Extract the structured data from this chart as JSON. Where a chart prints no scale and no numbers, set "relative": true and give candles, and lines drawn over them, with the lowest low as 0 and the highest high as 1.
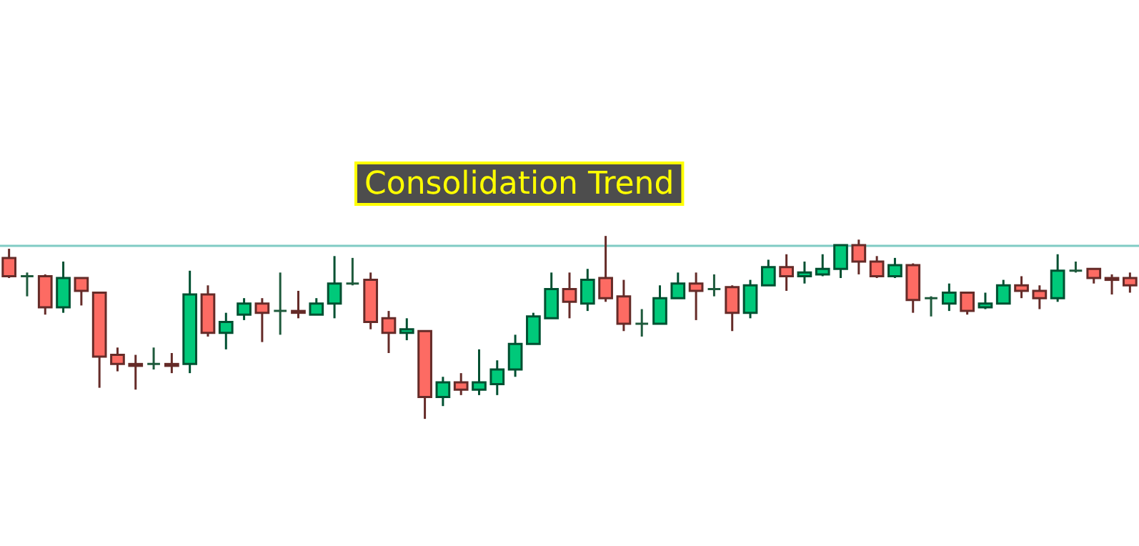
{
  "chart_data": {
    "type": "candlestick",
    "relative": true,
    "tick_labels": false,
    "grid": false,
    "annotations": [
      "Consolidation Trend"
    ],
    "ref_lines": [
      {
        "axis": "y",
        "value": 0.95,
        "color": "#80cbc4"
      }
    ],
    "categories": [
      null,
      null,
      null,
      null,
      null,
      null,
      null,
      null,
      null,
      null,
      null,
      null,
      null,
      null,
      null,
      null,
      null,
      null,
      null,
      null,
      null,
      null,
      null,
      null,
      null,
      null,
      null,
      null,
      null,
      null,
      null,
      null,
      null,
      null,
      null,
      null,
      null,
      null,
      null,
      null,
      null,
      null,
      null,
      null,
      null,
      null,
      null,
      null,
      null,
      null,
      null,
      null,
      null,
      null,
      null,
      null,
      null,
      null,
      null,
      null,
      null,
      null,
      null
    ],
    "ohlc": [
      [
        0.88,
        0.93,
        0.77,
        0.78
      ],
      [
        0.78,
        0.8,
        0.67,
        0.78
      ],
      [
        0.78,
        0.79,
        0.57,
        0.61
      ],
      [
        0.61,
        0.86,
        0.58,
        0.77
      ],
      [
        0.77,
        0.77,
        0.62,
        0.7
      ],
      [
        0.69,
        0.69,
        0.17,
        0.34
      ],
      [
        0.35,
        0.39,
        0.26,
        0.3
      ],
      [
        0.3,
        0.35,
        0.16,
        0.29
      ],
      [
        0.3,
        0.39,
        0.27,
        0.3
      ],
      [
        0.3,
        0.36,
        0.25,
        0.29
      ],
      [
        0.3,
        0.81,
        0.25,
        0.68
      ],
      [
        0.68,
        0.73,
        0.45,
        0.47
      ],
      [
        0.47,
        0.58,
        0.38,
        0.53
      ],
      [
        0.57,
        0.66,
        0.54,
        0.63
      ],
      [
        0.63,
        0.66,
        0.42,
        0.58
      ],
      [
        0.59,
        0.8,
        0.46,
        0.59
      ],
      [
        0.59,
        0.7,
        0.55,
        0.58
      ],
      [
        0.57,
        0.66,
        0.57,
        0.63
      ],
      [
        0.63,
        0.89,
        0.55,
        0.74
      ],
      [
        0.74,
        0.88,
        0.73,
        0.74
      ],
      [
        0.76,
        0.8,
        0.49,
        0.53
      ],
      [
        0.55,
        0.59,
        0.36,
        0.47
      ],
      [
        0.47,
        0.55,
        0.43,
        0.49
      ],
      [
        0.48,
        0.48,
        0,
        0.12
      ],
      [
        0.12,
        0.23,
        0.07,
        0.2
      ],
      [
        0.2,
        0.25,
        0.13,
        0.16
      ],
      [
        0.16,
        0.38,
        0.13,
        0.2
      ],
      [
        0.19,
        0.32,
        0.13,
        0.27
      ],
      [
        0.27,
        0.46,
        0.23,
        0.41
      ],
      [
        0.41,
        0.58,
        0.41,
        0.56
      ],
      [
        0.55,
        0.8,
        0.55,
        0.71
      ],
      [
        0.71,
        0.8,
        0.55,
        0.64
      ],
      [
        0.63,
        0.82,
        0.59,
        0.76
      ],
      [
        0.77,
        1,
        0.64,
        0.66
      ],
      [
        0.67,
        0.76,
        0.48,
        0.52
      ],
      [
        0.52,
        0.6,
        0.45,
        0.52
      ],
      [
        0.52,
        0.73,
        0.52,
        0.66
      ],
      [
        0.66,
        0.8,
        0.66,
        0.74
      ],
      [
        0.74,
        0.8,
        0.54,
        0.7
      ],
      [
        0.71,
        0.79,
        0.67,
        0.71
      ],
      [
        0.72,
        0.73,
        0.48,
        0.58
      ],
      [
        0.58,
        0.76,
        0.55,
        0.73
      ],
      [
        0.73,
        0.87,
        0.73,
        0.83
      ],
      [
        0.83,
        0.9,
        0.7,
        0.78
      ],
      [
        0.78,
        0.86,
        0.74,
        0.8
      ],
      [
        0.79,
        0.9,
        0.78,
        0.82
      ],
      [
        0.82,
        0.95,
        0.77,
        0.95
      ],
      [
        0.95,
        0.98,
        0.79,
        0.86
      ],
      [
        0.86,
        0.89,
        0.77,
        0.78
      ],
      [
        0.78,
        0.88,
        0.77,
        0.84
      ],
      [
        0.84,
        0.85,
        0.58,
        0.65
      ],
      [
        0.66,
        0.67,
        0.56,
        0.66
      ],
      [
        0.63,
        0.74,
        0.59,
        0.69
      ],
      [
        0.69,
        0.69,
        0.57,
        0.59
      ],
      [
        0.61,
        0.69,
        0.6,
        0.63
      ],
      [
        0.63,
        0.76,
        0.63,
        0.73
      ],
      [
        0.73,
        0.78,
        0.66,
        0.7
      ],
      [
        0.7,
        0.73,
        0.6,
        0.66
      ],
      [
        0.66,
        0.9,
        0.64,
        0.81
      ],
      [
        0.81,
        0.86,
        0.8,
        0.81
      ],
      [
        0.82,
        0.82,
        0.74,
        0.77
      ],
      [
        0.77,
        0.79,
        0.68,
        0.76
      ],
      [
        0.77,
        0.8,
        0.69,
        0.73
      ]
    ],
    "colors": [
      "#fd6b63",
      "#1e5a3c",
      "#fd6b63",
      "#00c97a",
      "#fd6b63",
      "#fd6b63",
      "#fd6b63",
      "#fd6b63",
      "#1e5a3c",
      "#fd6b63",
      "#00c97a",
      "#fd6b63",
      "#00c97a",
      "#00c97a",
      "#fd6b63",
      "#1e5a3c",
      "#fd6b63",
      "#00c97a",
      "#00c97a",
      "#1e5a3c",
      "#fd6b63",
      "#fd6b63",
      "#00c97a",
      "#fd6b63",
      "#00c97a",
      "#fd6b63",
      "#00c97a",
      "#00c97a",
      "#00c97a",
      "#00c97a",
      "#00c97a",
      "#fd6b63",
      "#00c97a",
      "#fd6b63",
      "#fd6b63",
      "#1e5a3c",
      "#00c97a",
      "#00c97a",
      "#fd6b63",
      "#1e5a3c",
      "#fd6b63",
      "#00c97a",
      "#00c97a",
      "#fd6b63",
      "#00c97a",
      "#00c97a",
      "#00c97a",
      "#fd6b63",
      "#fd6b63",
      "#00c97a",
      "#fd6b63",
      "#1e5a3c",
      "#00c97a",
      "#fd6b63",
      "#00c97a",
      "#00c97a",
      "#fd6b63",
      "#fd6b63",
      "#00c97a",
      "#1e5a3c",
      "#fd6b63",
      "#fd6b63",
      "#fd6b63"
    ]
  }
}
